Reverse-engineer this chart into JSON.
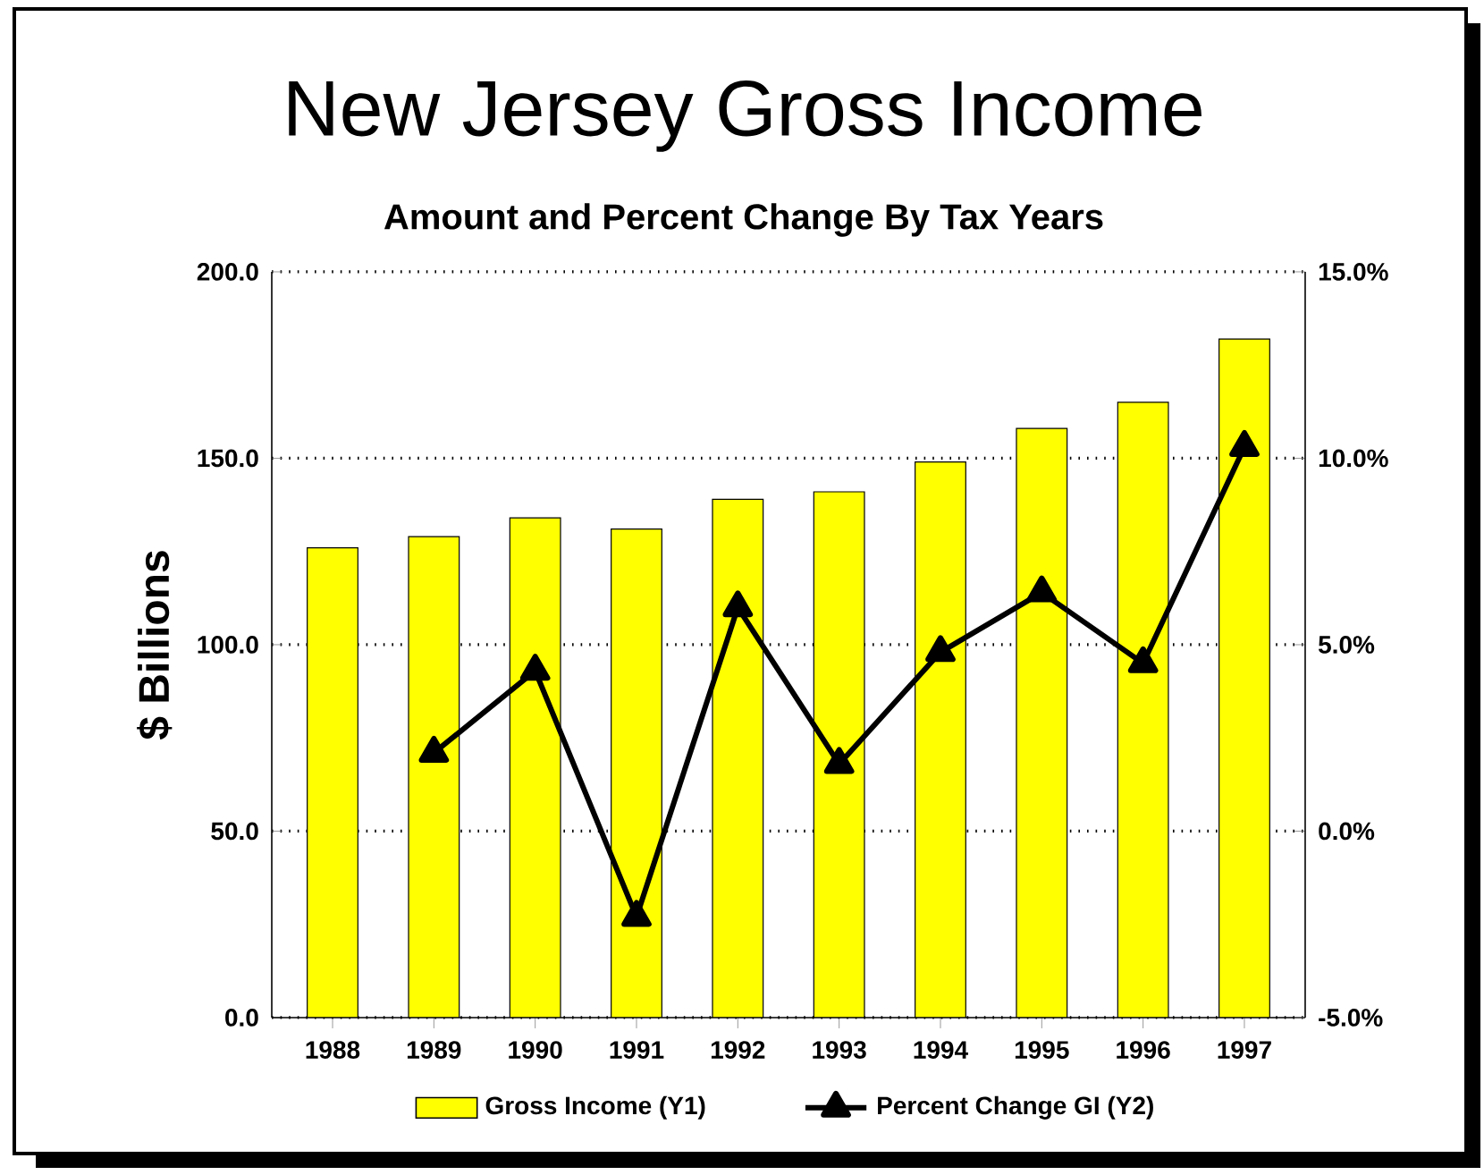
{
  "chart_data": {
    "type": "bar",
    "title": "New Jersey Gross Income",
    "subtitle": "Amount and Percent Change By Tax Years",
    "ylabel": "$ Billions",
    "categories": [
      "1988",
      "1989",
      "1990",
      "1991",
      "1992",
      "1993",
      "1994",
      "1995",
      "1996",
      "1997"
    ],
    "series": [
      {
        "name": "Gross Income (Y1)",
        "color": "#ffff00",
        "values": [
          126,
          129,
          134,
          131,
          139,
          141,
          149,
          158,
          165,
          182
        ]
      },
      {
        "name": "Percent Change GI (Y2)",
        "type": "line",
        "axis": "y2",
        "color": "#000000",
        "values": [
          null,
          2.1,
          4.3,
          -2.3,
          6.0,
          1.8,
          4.8,
          6.4,
          4.5,
          10.3
        ]
      }
    ],
    "ylim": [
      0,
      200
    ],
    "yticks": [
      {
        "value": 0,
        "label": "0.0"
      },
      {
        "value": 50,
        "label": "50.0"
      },
      {
        "value": 100,
        "label": "100.0"
      },
      {
        "value": 150,
        "label": "150.0"
      },
      {
        "value": 200,
        "label": "200.0"
      }
    ],
    "y2lim": [
      -5,
      15
    ],
    "y2ticks": [
      {
        "value": -5,
        "label": "-5.0%"
      },
      {
        "value": 0,
        "label": "0.0%"
      },
      {
        "value": 5,
        "label": "5.0%"
      },
      {
        "value": 10,
        "label": "10.0%"
      },
      {
        "value": 15,
        "label": "15.0%"
      }
    ],
    "grid": "y",
    "legend": "bottom",
    "marker": "triangle",
    "line_style": "solid"
  }
}
